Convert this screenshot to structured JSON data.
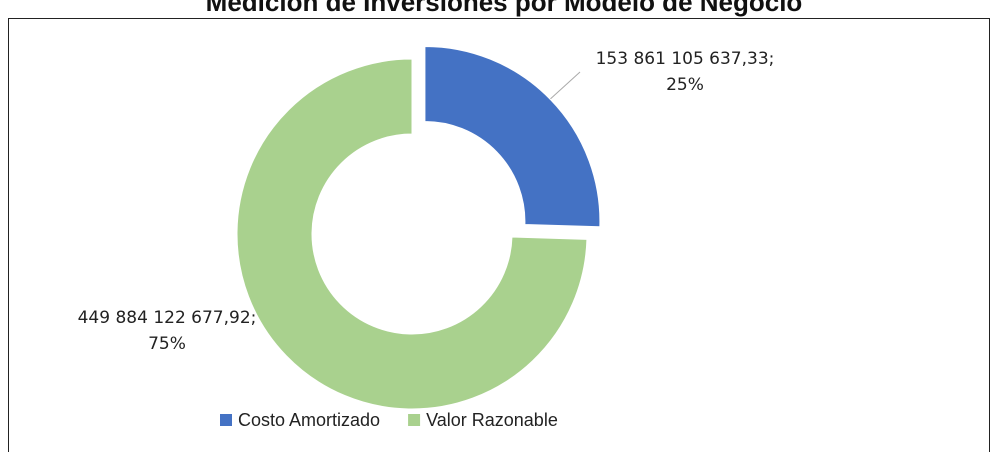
{
  "chart_data": {
    "type": "donut",
    "title": "Medición de Inversiones por Modelo de Negocio",
    "categories": [
      "Costo Amortizado",
      "Valor Razonable"
    ],
    "values": [
      153861105637.33,
      449884122677.92
    ],
    "value_labels": [
      "153 861 105 637,33; 25%",
      "449 884 122 677,92; 75%"
    ],
    "colors": [
      "#4472c4",
      "#a9d18e"
    ],
    "legend": "bottom"
  }
}
